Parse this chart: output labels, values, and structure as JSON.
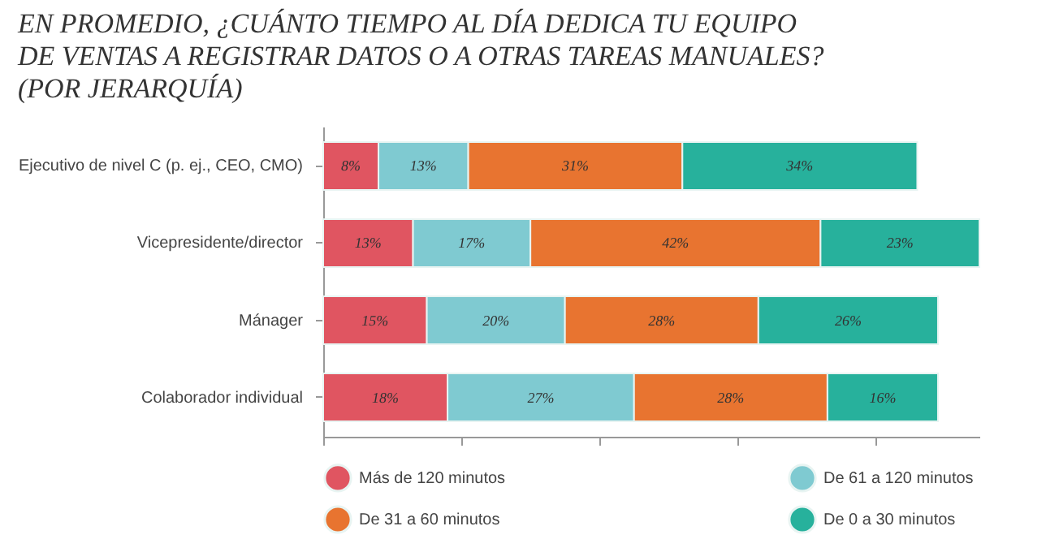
{
  "chart_data": {
    "type": "bar",
    "orientation": "horizontal",
    "stacked": true,
    "tick_labels": "y",
    "grid": false,
    "legend": "bottom",
    "title": "EN PROMEDIO, ¿CUÁNTO TIEMPO AL DÍA DEDICA TU EQUIPO\nDE VENTAS A REGISTRAR DATOS O A OTRAS TAREAS MANUALES?\n(POR JERARQUÍA)",
    "categories": [
      "Ejecutivo de nivel C (p. ej., CEO, CMO)",
      "Vicepresidente/director",
      "Mánager",
      "Colaborador individual"
    ],
    "series": [
      {
        "name": "Más de 120 minutos",
        "color": "#e05561",
        "values": [
          8,
          13,
          15,
          18
        ],
        "value_labels": [
          "8%",
          "13%",
          "15%",
          "18%"
        ]
      },
      {
        "name": "De 61 a 120 minutos",
        "color": "#7fcad1",
        "values": [
          13,
          17,
          20,
          27
        ],
        "value_labels": [
          "13%",
          "17%",
          "20%",
          "27%"
        ]
      },
      {
        "name": "De 31 a 60 minutos",
        "color": "#e87430",
        "values": [
          31,
          42,
          28,
          28
        ],
        "value_labels": [
          "31%",
          "42%",
          "28%",
          "28%"
        ]
      },
      {
        "name": "De 0 a 30 minutos",
        "color": "#27b19c",
        "values": [
          34,
          23,
          26,
          16
        ],
        "value_labels": [
          "34%",
          "23%",
          "26%",
          "16%"
        ]
      }
    ]
  }
}
